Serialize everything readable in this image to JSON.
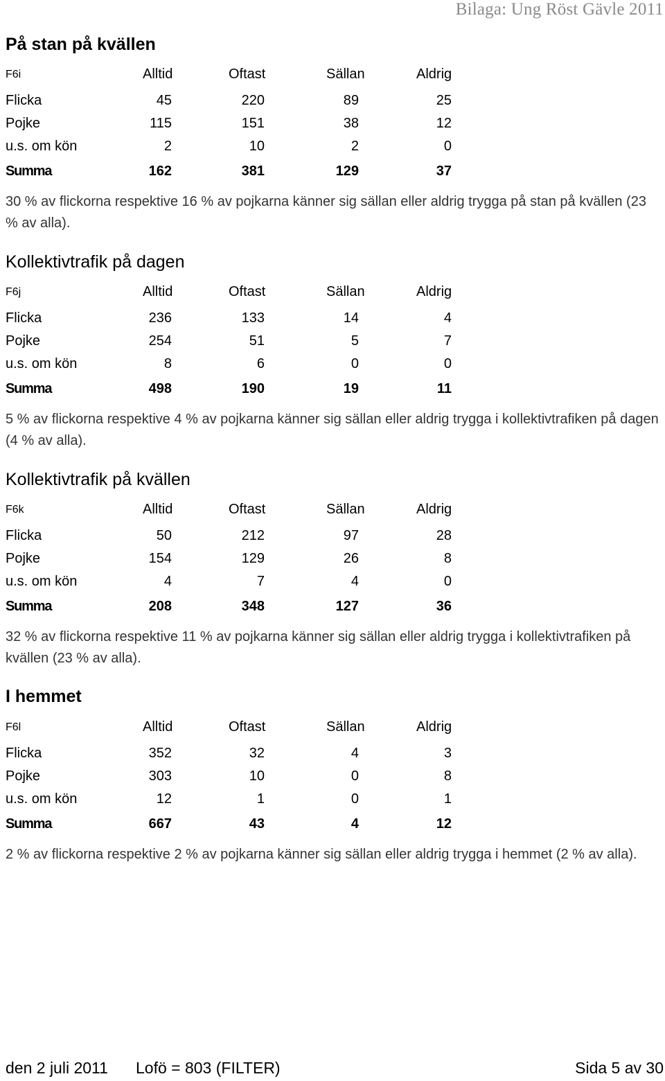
{
  "header": {
    "title": "Bilaga: Ung Röst Gävle 2011"
  },
  "columns": [
    "Alltid",
    "Oftast",
    "Sällan",
    "Aldrig"
  ],
  "sections": [
    {
      "title": "På stan på kvällen",
      "qid": "F6i",
      "rows": [
        {
          "label": "Flicka",
          "values": [
            "45",
            "220",
            "89",
            "25"
          ]
        },
        {
          "label": "Pojke",
          "values": [
            "115",
            "151",
            "38",
            "12"
          ]
        },
        {
          "label": "u.s. om kön",
          "values": [
            "2",
            "10",
            "2",
            "0"
          ]
        }
      ],
      "sum": {
        "label": "Summa",
        "values": [
          "162",
          "381",
          "129",
          "37"
        ]
      },
      "note": "30 % av flickorna respektive 16 % av pojkarna känner sig sällan eller aldrig trygga på stan på kvällen (23 % av alla)."
    },
    {
      "title": "Kollektivtrafik på dagen",
      "qid": "F6j",
      "rows": [
        {
          "label": "Flicka",
          "values": [
            "236",
            "133",
            "14",
            "4"
          ]
        },
        {
          "label": "Pojke",
          "values": [
            "254",
            "51",
            "5",
            "7"
          ]
        },
        {
          "label": "u.s. om kön",
          "values": [
            "8",
            "6",
            "0",
            "0"
          ]
        }
      ],
      "sum": {
        "label": "Summa",
        "values": [
          "498",
          "190",
          "19",
          "11"
        ]
      },
      "note": "5 % av flickorna respektive 4 % av pojkarna känner sig sällan eller aldrig trygga i kollektivtrafiken på dagen (4 % av alla)."
    },
    {
      "title": "Kollektivtrafik på kvällen",
      "qid": "F6k",
      "rows": [
        {
          "label": "Flicka",
          "values": [
            "50",
            "212",
            "97",
            "28"
          ]
        },
        {
          "label": "Pojke",
          "values": [
            "154",
            "129",
            "26",
            "8"
          ]
        },
        {
          "label": "u.s. om kön",
          "values": [
            "4",
            "7",
            "4",
            "0"
          ]
        }
      ],
      "sum": {
        "label": "Summa",
        "values": [
          "208",
          "348",
          "127",
          "36"
        ]
      },
      "note": "32 % av flickorna respektive 11 % av pojkarna känner sig sällan eller aldrig trygga i kollektivtrafiken på kvällen (23 % av alla)."
    },
    {
      "title": "I hemmet",
      "qid": "F6l",
      "rows": [
        {
          "label": "Flicka",
          "values": [
            "352",
            "32",
            "4",
            "3"
          ]
        },
        {
          "label": "Pojke",
          "values": [
            "303",
            "10",
            "0",
            "8"
          ]
        },
        {
          "label": "u.s. om kön",
          "values": [
            "12",
            "1",
            "0",
            "1"
          ]
        }
      ],
      "sum": {
        "label": "Summa",
        "values": [
          "667",
          "43",
          "4",
          "12"
        ]
      },
      "note": "2 % av flickorna respektive 2 % av pojkarna känner sig sällan eller aldrig trygga i hemmet (2 % av alla)."
    }
  ],
  "footer": {
    "date": "den 2 juli 2011",
    "filter": "Lofö = 803 (FILTER)",
    "page": "Sida 5 av 30"
  }
}
